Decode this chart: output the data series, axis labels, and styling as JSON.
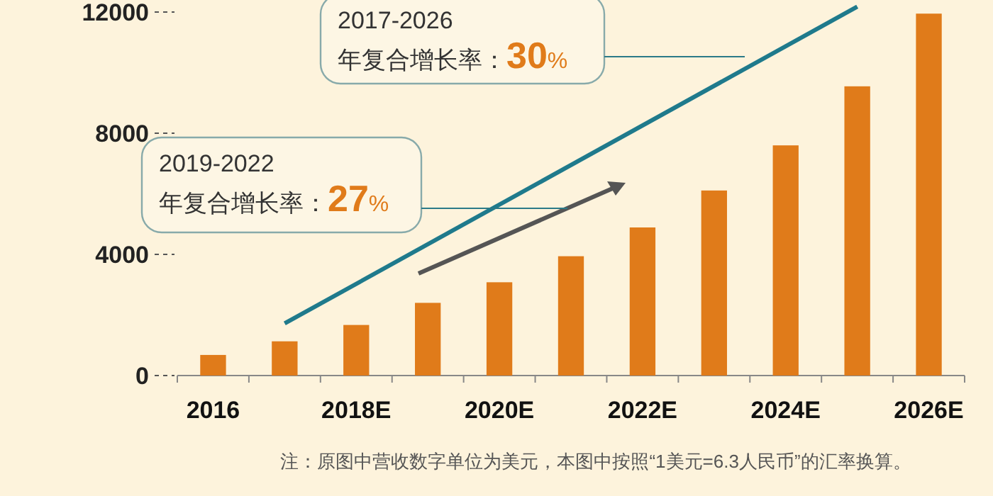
{
  "chart_data": {
    "type": "bar",
    "categories": [
      "2016",
      null,
      "2018E",
      null,
      "2020E",
      null,
      "2022E",
      null,
      "2024E",
      null,
      "2026E"
    ],
    "series": [
      {
        "color": "#e07b1a",
        "values": [
          680,
          1130,
          1670,
          2400,
          3080,
          3940,
          4890,
          6110,
          7600,
          9550,
          11950
        ]
      },
      {
        "type": "line",
        "color": "#1f7a8c",
        "values": [
          null,
          1720,
          null,
          null,
          null,
          null,
          null,
          null,
          null,
          12180,
          null
        ]
      }
    ],
    "ylim": [
      0,
      12400
    ],
    "yticks": [
      0,
      4000,
      8000,
      12000
    ],
    "grid": false,
    "annotations": [
      "2017-2026\n年复合增长率：30%",
      "2019-2022\n年复合增长率：27%",
      "注：原图中营收数字单位为美元，本图中按照“1美元=6.3人民币”的汇率换算。"
    ]
  }
}
